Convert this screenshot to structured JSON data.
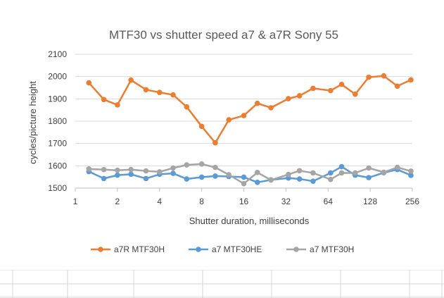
{
  "chart_data": {
    "type": "line",
    "title": "MTF30 vs shutter speed a7 & a7R Sony 55",
    "xlabel": "Shutter duration, milliseconds",
    "ylabel": "cycles/picture height",
    "x_scale": "log2",
    "xlim": [
      1,
      256
    ],
    "ylim": [
      1500,
      2100
    ],
    "x_ticks": [
      1,
      2,
      4,
      8,
      16,
      32,
      64,
      128,
      256
    ],
    "y_ticks": [
      1500,
      1600,
      1700,
      1800,
      1900,
      2000,
      2100
    ],
    "x_tick_labels": [
      "1",
      "2",
      "4",
      "8",
      "16",
      "32",
      "64",
      "128",
      "256"
    ],
    "y_tick_labels": [
      "1500",
      "1600",
      "1700",
      "1800",
      "1900",
      "2000",
      "2100"
    ],
    "grid": "horizontal",
    "legend_position": "bottom",
    "x": [
      1.25,
      1.6,
      2,
      2.5,
      3.2,
      4,
      5,
      6.25,
      8,
      10,
      12.5,
      16,
      20,
      25,
      33.3,
      40,
      50,
      66.7,
      80,
      100,
      125,
      160,
      200,
      250
    ],
    "series": [
      {
        "name": "a7R MTF30H",
        "color": "#ED7D31",
        "values": [
          1972,
          1897,
          1873,
          1984,
          1941,
          1929,
          1918,
          1864,
          1777,
          1703,
          1806,
          1825,
          1880,
          1860,
          1901,
          1914,
          1947,
          1937,
          1965,
          1921,
          1997,
          2003,
          1957,
          1985
        ]
      },
      {
        "name": "a7 MTF30HE",
        "color": "#5B9BD5",
        "values": [
          1574,
          1543,
          1558,
          1562,
          1543,
          1562,
          1566,
          1541,
          1549,
          1554,
          1552,
          1549,
          1526,
          1537,
          1545,
          1541,
          1531,
          1568,
          1596,
          1558,
          1547,
          1569,
          1583,
          1557
        ]
      },
      {
        "name": "a7 MTF30H",
        "color": "#A5A5A5",
        "values": [
          1586,
          1583,
          1580,
          1583,
          1577,
          1573,
          1590,
          1604,
          1608,
          1593,
          1560,
          1520,
          1570,
          1536,
          1561,
          1578,
          1568,
          1539,
          1568,
          1568,
          1590,
          1571,
          1593,
          1576
        ]
      }
    ]
  }
}
